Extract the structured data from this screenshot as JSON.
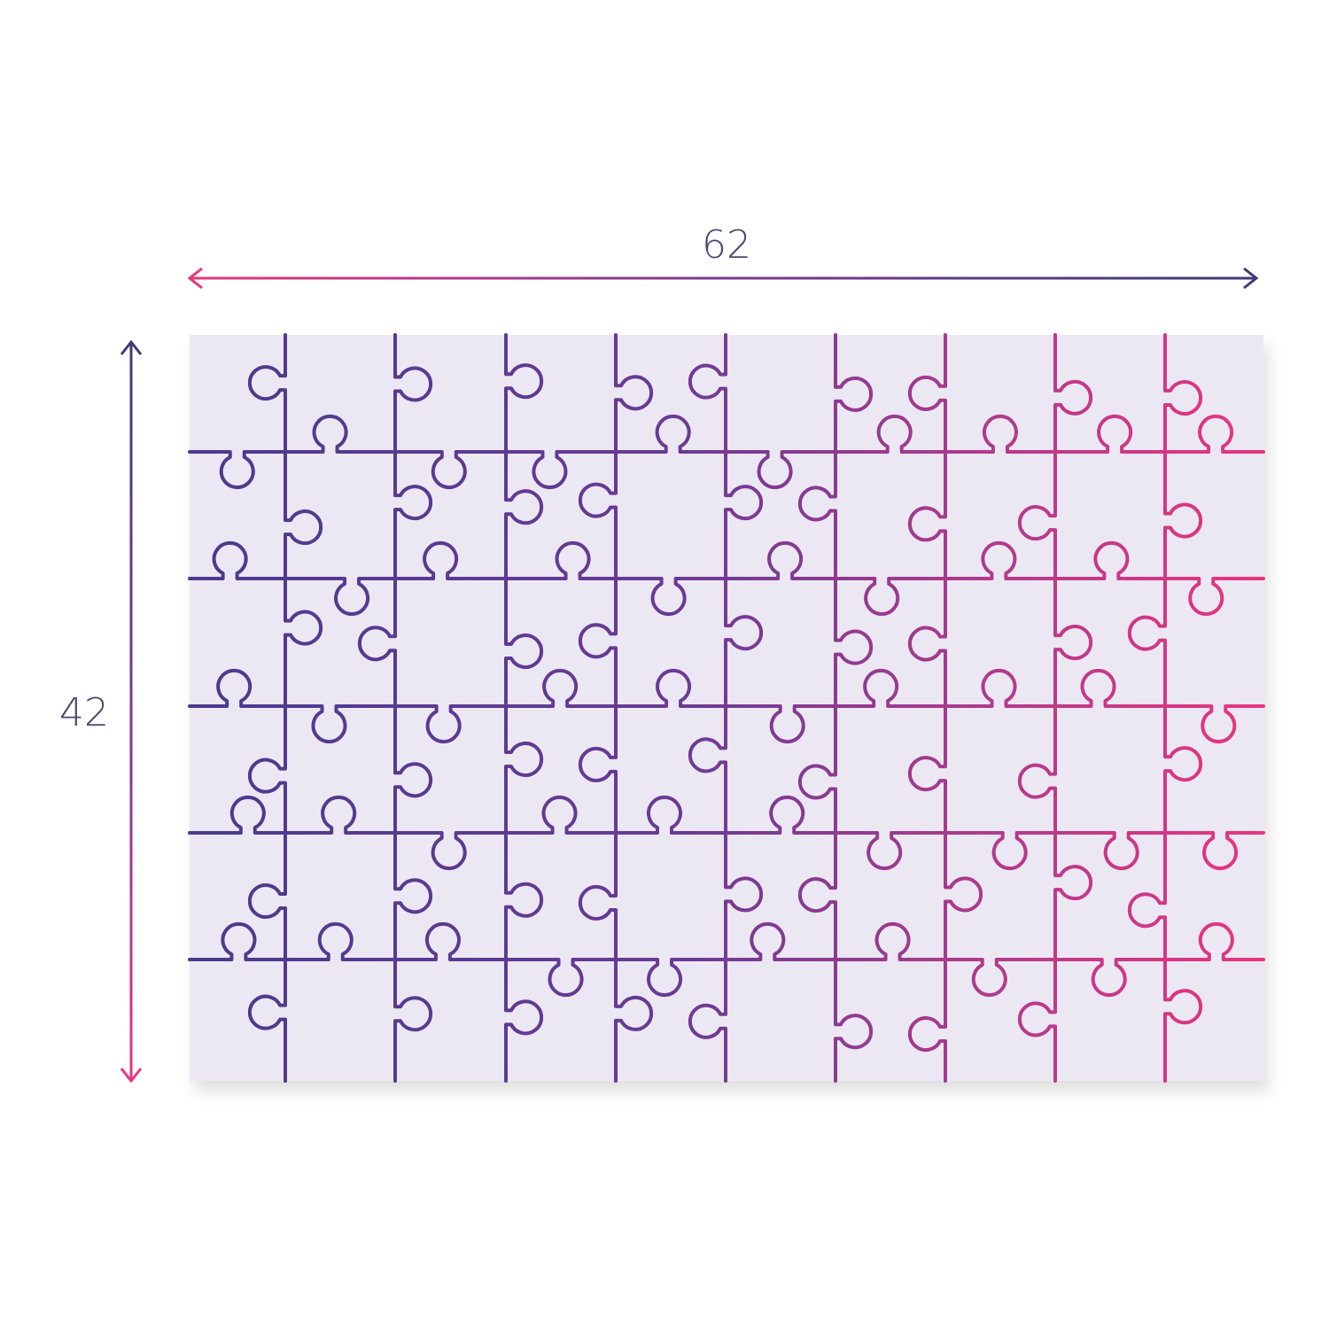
{
  "dimensions": {
    "width_label": "62",
    "height_label": "42"
  },
  "puzzle": {
    "columns": 10,
    "rows": 6,
    "board_color": "#ebe8f3",
    "line_color_start": "#4b3a8c",
    "line_color_end": "#e8357f"
  },
  "colors": {
    "arrow_pink": "#e8357f",
    "arrow_navy": "#3f3a78",
    "label_text": "#4b4870"
  }
}
